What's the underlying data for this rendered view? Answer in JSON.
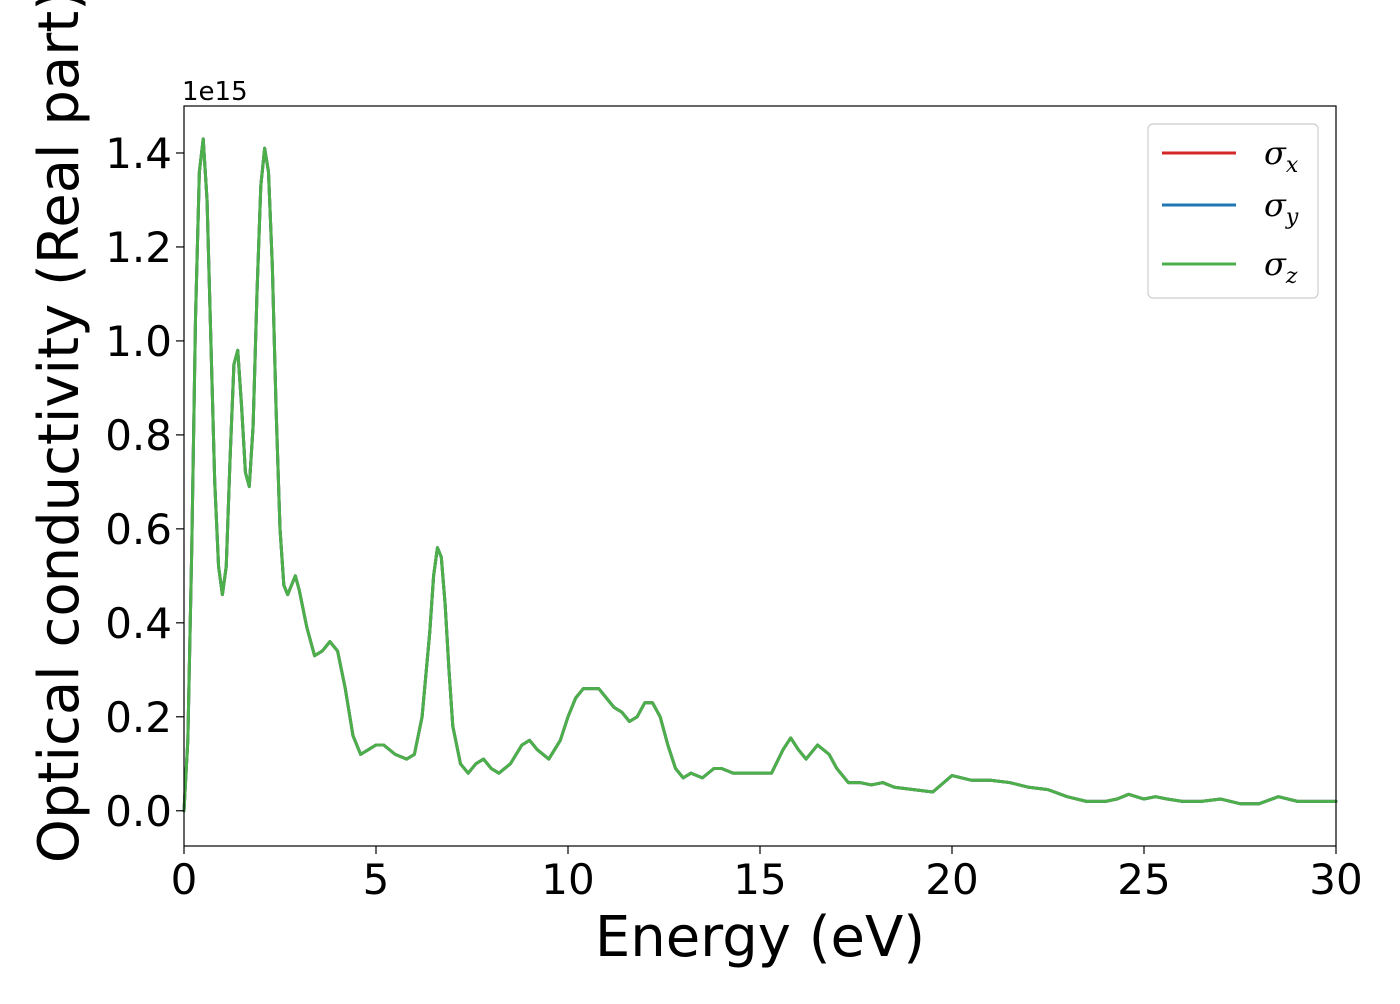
{
  "chart_data": {
    "type": "line",
    "title": "",
    "xlabel": "Energy (eV)",
    "ylabel": "Optical conductivity (Real part)",
    "y_offset_text": "1e15",
    "xlim": [
      0,
      30
    ],
    "ylim": [
      -0.075,
      1.5
    ],
    "x_ticks": [
      0,
      5,
      10,
      15,
      20,
      25,
      30
    ],
    "x_tick_labels": [
      "0",
      "5",
      "10",
      "15",
      "20",
      "25",
      "30"
    ],
    "y_ticks": [
      0.0,
      0.2,
      0.4,
      0.6,
      0.8,
      1.0,
      1.2,
      1.4
    ],
    "y_tick_labels": [
      "0.0",
      "0.2",
      "0.4",
      "0.6",
      "0.8",
      "1.0",
      "1.2",
      "1.4"
    ],
    "grid": false,
    "legend_position": "top-right",
    "x": [
      0.0,
      0.1,
      0.2,
      0.3,
      0.4,
      0.5,
      0.6,
      0.7,
      0.8,
      0.9,
      1.0,
      1.1,
      1.2,
      1.3,
      1.4,
      1.5,
      1.6,
      1.7,
      1.8,
      1.9,
      2.0,
      2.1,
      2.2,
      2.3,
      2.4,
      2.5,
      2.6,
      2.7,
      2.8,
      2.9,
      3.0,
      3.2,
      3.4,
      3.6,
      3.8,
      4.0,
      4.2,
      4.4,
      4.6,
      4.8,
      5.0,
      5.2,
      5.5,
      5.8,
      6.0,
      6.2,
      6.4,
      6.5,
      6.6,
      6.7,
      6.8,
      6.9,
      7.0,
      7.2,
      7.4,
      7.6,
      7.8,
      8.0,
      8.2,
      8.5,
      8.8,
      9.0,
      9.2,
      9.5,
      9.8,
      10.0,
      10.2,
      10.4,
      10.6,
      10.8,
      11.0,
      11.2,
      11.4,
      11.6,
      11.8,
      12.0,
      12.2,
      12.4,
      12.6,
      12.8,
      13.0,
      13.2,
      13.5,
      13.8,
      14.0,
      14.3,
      14.6,
      15.0,
      15.3,
      15.6,
      15.8,
      16.0,
      16.2,
      16.5,
      16.8,
      17.0,
      17.3,
      17.6,
      17.9,
      18.2,
      18.5,
      19.0,
      19.5,
      20.0,
      20.5,
      21.0,
      21.5,
      22.0,
      22.5,
      23.0,
      23.5,
      24.0,
      24.3,
      24.6,
      25.0,
      25.3,
      25.6,
      26.0,
      26.5,
      27.0,
      27.5,
      28.0,
      28.5,
      29.0,
      29.5,
      30.0
    ],
    "series": [
      {
        "name": "σx",
        "color": "#d62728",
        "values": [
          0.0,
          0.15,
          0.55,
          1.05,
          1.36,
          1.43,
          1.3,
          1.0,
          0.7,
          0.52,
          0.46,
          0.52,
          0.75,
          0.95,
          0.98,
          0.86,
          0.72,
          0.69,
          0.82,
          1.1,
          1.33,
          1.41,
          1.36,
          1.16,
          0.85,
          0.6,
          0.48,
          0.46,
          0.48,
          0.5,
          0.47,
          0.39,
          0.33,
          0.34,
          0.36,
          0.34,
          0.26,
          0.16,
          0.12,
          0.13,
          0.14,
          0.14,
          0.12,
          0.11,
          0.12,
          0.2,
          0.38,
          0.5,
          0.56,
          0.54,
          0.44,
          0.3,
          0.18,
          0.1,
          0.08,
          0.1,
          0.11,
          0.09,
          0.08,
          0.1,
          0.14,
          0.15,
          0.13,
          0.11,
          0.15,
          0.2,
          0.24,
          0.26,
          0.26,
          0.26,
          0.24,
          0.22,
          0.21,
          0.19,
          0.2,
          0.23,
          0.23,
          0.2,
          0.14,
          0.09,
          0.07,
          0.08,
          0.07,
          0.09,
          0.09,
          0.08,
          0.08,
          0.08,
          0.08,
          0.13,
          0.155,
          0.13,
          0.11,
          0.14,
          0.12,
          0.09,
          0.06,
          0.06,
          0.055,
          0.06,
          0.05,
          0.045,
          0.04,
          0.075,
          0.065,
          0.065,
          0.06,
          0.05,
          0.045,
          0.03,
          0.02,
          0.02,
          0.025,
          0.035,
          0.025,
          0.03,
          0.025,
          0.02,
          0.02,
          0.025,
          0.015,
          0.015,
          0.03,
          0.02,
          0.02,
          0.02
        ]
      },
      {
        "name": "σy",
        "color": "#1f77b4",
        "values": [
          0.0,
          0.15,
          0.55,
          1.05,
          1.36,
          1.43,
          1.3,
          1.0,
          0.7,
          0.52,
          0.46,
          0.52,
          0.75,
          0.95,
          0.98,
          0.86,
          0.72,
          0.69,
          0.82,
          1.1,
          1.33,
          1.41,
          1.36,
          1.16,
          0.85,
          0.6,
          0.48,
          0.46,
          0.48,
          0.5,
          0.47,
          0.39,
          0.33,
          0.34,
          0.36,
          0.34,
          0.26,
          0.16,
          0.12,
          0.13,
          0.14,
          0.14,
          0.12,
          0.11,
          0.12,
          0.2,
          0.38,
          0.5,
          0.56,
          0.54,
          0.44,
          0.3,
          0.18,
          0.1,
          0.08,
          0.1,
          0.11,
          0.09,
          0.08,
          0.1,
          0.14,
          0.15,
          0.13,
          0.11,
          0.15,
          0.2,
          0.24,
          0.26,
          0.26,
          0.26,
          0.24,
          0.22,
          0.21,
          0.19,
          0.2,
          0.23,
          0.23,
          0.2,
          0.14,
          0.09,
          0.07,
          0.08,
          0.07,
          0.09,
          0.09,
          0.08,
          0.08,
          0.08,
          0.08,
          0.13,
          0.155,
          0.13,
          0.11,
          0.14,
          0.12,
          0.09,
          0.06,
          0.06,
          0.055,
          0.06,
          0.05,
          0.045,
          0.04,
          0.075,
          0.065,
          0.065,
          0.06,
          0.05,
          0.045,
          0.03,
          0.02,
          0.02,
          0.025,
          0.035,
          0.025,
          0.03,
          0.025,
          0.02,
          0.02,
          0.025,
          0.015,
          0.015,
          0.03,
          0.02,
          0.02,
          0.02
        ]
      },
      {
        "name": "σz",
        "color": "#4daf4a",
        "values": [
          0.0,
          0.15,
          0.55,
          1.05,
          1.36,
          1.43,
          1.3,
          1.0,
          0.7,
          0.52,
          0.46,
          0.52,
          0.75,
          0.95,
          0.98,
          0.86,
          0.72,
          0.69,
          0.82,
          1.1,
          1.33,
          1.41,
          1.36,
          1.16,
          0.85,
          0.6,
          0.48,
          0.46,
          0.48,
          0.5,
          0.47,
          0.39,
          0.33,
          0.34,
          0.36,
          0.34,
          0.26,
          0.16,
          0.12,
          0.13,
          0.14,
          0.14,
          0.12,
          0.11,
          0.12,
          0.2,
          0.38,
          0.5,
          0.56,
          0.54,
          0.44,
          0.3,
          0.18,
          0.1,
          0.08,
          0.1,
          0.11,
          0.09,
          0.08,
          0.1,
          0.14,
          0.15,
          0.13,
          0.11,
          0.15,
          0.2,
          0.24,
          0.26,
          0.26,
          0.26,
          0.24,
          0.22,
          0.21,
          0.19,
          0.2,
          0.23,
          0.23,
          0.2,
          0.14,
          0.09,
          0.07,
          0.08,
          0.07,
          0.09,
          0.09,
          0.08,
          0.08,
          0.08,
          0.08,
          0.13,
          0.155,
          0.13,
          0.11,
          0.14,
          0.12,
          0.09,
          0.06,
          0.06,
          0.055,
          0.06,
          0.05,
          0.045,
          0.04,
          0.075,
          0.065,
          0.065,
          0.06,
          0.05,
          0.045,
          0.03,
          0.02,
          0.02,
          0.025,
          0.035,
          0.025,
          0.03,
          0.025,
          0.02,
          0.02,
          0.025,
          0.015,
          0.015,
          0.03,
          0.02,
          0.02,
          0.02
        ]
      }
    ],
    "legend": [
      {
        "symbol": "σ",
        "sub": "x",
        "color": "#d62728"
      },
      {
        "symbol": "σ",
        "sub": "y",
        "color": "#1f77b4"
      },
      {
        "symbol": "σ",
        "sub": "z",
        "color": "#4daf4a"
      }
    ]
  }
}
